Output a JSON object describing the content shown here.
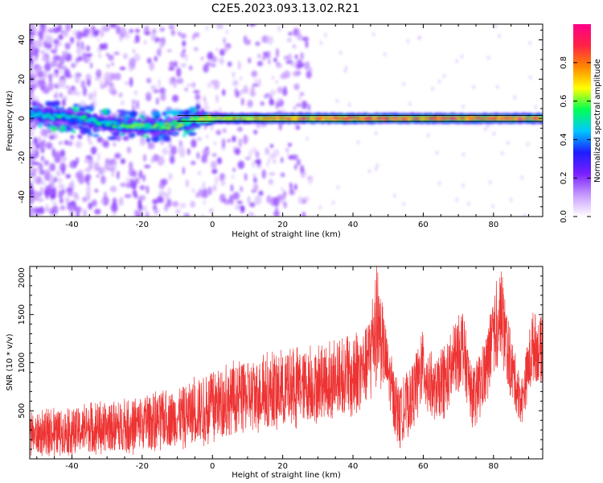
{
  "title": "C2E5.2023.093.13.02.R21",
  "chart_data": [
    {
      "type": "heatmap",
      "xlabel": "Height of straight line (km)",
      "ylabel": "Frequency (Hz)",
      "xlim": [
        -52,
        94
      ],
      "ylim": [
        -50,
        48
      ],
      "x_ticks": [
        -40,
        -20,
        0,
        20,
        40,
        60,
        80
      ],
      "y_ticks": [
        -40,
        -20,
        0,
        20,
        40
      ],
      "colorbar": {
        "label": "Normalized spectral amplitude",
        "range": [
          0,
          1
        ],
        "ticks": [
          "0.0",
          "0.2",
          "0.4",
          "0.6",
          "0.8"
        ],
        "colormap": [
          "#ffffff",
          "#c79bff",
          "#7a1fff",
          "#1d1dff",
          "#00c8ff",
          "#00ff55",
          "#ffff00",
          "#ff8800",
          "#ff2244",
          "#ff0088"
        ]
      },
      "reference_band_hz": [
        -1.5,
        1.5
      ],
      "ridge": [
        {
          "x": -52,
          "hz": 2,
          "amp": 0.45
        },
        {
          "x": -45,
          "hz": 1,
          "amp": 0.5
        },
        {
          "x": -38,
          "hz": 0,
          "amp": 0.5
        },
        {
          "x": -30,
          "hz": -3,
          "amp": 0.5
        },
        {
          "x": -20,
          "hz": -4,
          "amp": 0.55
        },
        {
          "x": -15,
          "hz": -4,
          "amp": 0.55
        },
        {
          "x": -10,
          "hz": -3,
          "amp": 0.55
        },
        {
          "x": -5,
          "hz": -1,
          "amp": 0.6
        },
        {
          "x": 0,
          "hz": 0,
          "amp": 0.7
        },
        {
          "x": 10,
          "hz": 0,
          "amp": 0.75
        },
        {
          "x": 20,
          "hz": 0,
          "amp": 0.85
        },
        {
          "x": 40,
          "hz": 0,
          "amp": 0.88
        },
        {
          "x": 60,
          "hz": 0,
          "amp": 0.85
        },
        {
          "x": 80,
          "hz": 0,
          "amp": 0.85
        },
        {
          "x": 94,
          "hz": 0,
          "amp": 0.82
        }
      ]
    },
    {
      "type": "line",
      "xlabel": "Height of straight line (km)",
      "ylabel": "SNR (10 * v/v)",
      "xlim": [
        -52,
        94
      ],
      "ylim": [
        0,
        2000
      ],
      "x_ticks": [
        -40,
        -20,
        0,
        20,
        40,
        60,
        80
      ],
      "y_ticks": [
        500,
        1000,
        1500,
        2000
      ],
      "color": "#ee3333",
      "envelope": [
        {
          "x": -52,
          "low": 50,
          "high": 450
        },
        {
          "x": -40,
          "low": 60,
          "high": 520
        },
        {
          "x": -30,
          "low": 80,
          "high": 560
        },
        {
          "x": -20,
          "low": 100,
          "high": 620
        },
        {
          "x": -10,
          "low": 140,
          "high": 720
        },
        {
          "x": 0,
          "low": 200,
          "high": 900
        },
        {
          "x": 10,
          "low": 300,
          "high": 1000
        },
        {
          "x": 20,
          "low": 350,
          "high": 1080
        },
        {
          "x": 30,
          "low": 420,
          "high": 1120
        },
        {
          "x": 40,
          "low": 500,
          "high": 1230
        },
        {
          "x": 44,
          "low": 600,
          "high": 1380
        },
        {
          "x": 47,
          "low": 900,
          "high": 2000
        },
        {
          "x": 50,
          "low": 600,
          "high": 1200
        },
        {
          "x": 53,
          "low": 120,
          "high": 700
        },
        {
          "x": 56,
          "low": 300,
          "high": 900
        },
        {
          "x": 60,
          "low": 600,
          "high": 1300
        },
        {
          "x": 63,
          "low": 400,
          "high": 1000
        },
        {
          "x": 67,
          "low": 500,
          "high": 1150
        },
        {
          "x": 71,
          "low": 800,
          "high": 1600
        },
        {
          "x": 74,
          "low": 350,
          "high": 900
        },
        {
          "x": 78,
          "low": 600,
          "high": 1300
        },
        {
          "x": 82,
          "low": 1100,
          "high": 2000
        },
        {
          "x": 85,
          "low": 600,
          "high": 1300
        },
        {
          "x": 88,
          "low": 350,
          "high": 800
        },
        {
          "x": 91,
          "low": 800,
          "high": 1550
        },
        {
          "x": 94,
          "low": 800,
          "high": 1400
        }
      ]
    }
  ]
}
